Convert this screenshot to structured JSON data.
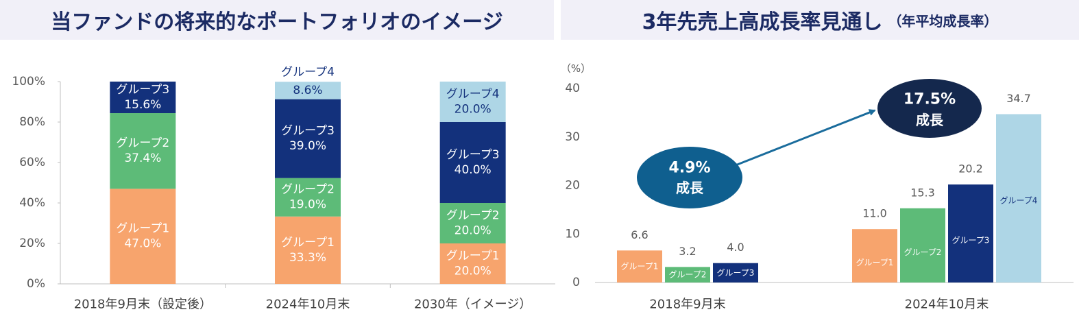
{
  "header": {
    "left_title": "当ファンドの将来的なポートフォリオのイメージ",
    "right_title": "3年先売上高成長率見通し",
    "right_subtitle": "（年平均成長率）"
  },
  "colors": {
    "グループ1": "#f7a46d",
    "グループ2": "#5dbb78",
    "グループ3": "#13317c",
    "グループ4": "#aed6e6",
    "bubble": "#0f5f8f",
    "bubble_dark": "#14284d",
    "arrow": "#1a6c9c"
  },
  "chart_data": [
    {
      "type": "bar",
      "stacked": true,
      "categories": [
        "2018年9月末（設定後）",
        "2024年10月末",
        "2030年（イメージ）"
      ],
      "series": [
        {
          "name": "グループ1",
          "values": [
            47.0,
            33.3,
            20.0
          ]
        },
        {
          "name": "グループ2",
          "values": [
            37.4,
            19.0,
            20.0
          ]
        },
        {
          "name": "グループ3",
          "values": [
            15.6,
            39.0,
            40.0
          ]
        },
        {
          "name": "グループ4",
          "values": [
            0,
            8.6,
            20.0
          ]
        }
      ],
      "value_labels": [
        [
          "47.0%",
          "37.4%",
          "15.6%",
          null
        ],
        [
          "33.3%",
          "19.0%",
          "39.0%",
          "8.6%"
        ],
        [
          "20.0%",
          "20.0%",
          "40.0%",
          "20.0%"
        ]
      ],
      "ylim": [
        0,
        100
      ],
      "yticks": [
        "0%",
        "20%",
        "40%",
        "60%",
        "80%",
        "100%"
      ],
      "grid": false
    },
    {
      "type": "bar",
      "categories": [
        "2018年9月末",
        "2024年10月末"
      ],
      "series": [
        {
          "name": "グループ1",
          "values": [
            6.6,
            11.0
          ]
        },
        {
          "name": "グループ2",
          "values": [
            3.2,
            15.3
          ]
        },
        {
          "name": "グループ3",
          "values": [
            4.0,
            20.2
          ]
        },
        {
          "name": "グループ4",
          "values": [
            null,
            34.7
          ]
        }
      ],
      "value_labels": [
        [
          "6.6",
          "3.2",
          "4.0",
          null
        ],
        [
          "11.0",
          "15.3",
          "20.2",
          "34.7"
        ]
      ],
      "unit_label": "（%）",
      "ylim": [
        0,
        40
      ],
      "yticks": [
        "0",
        "10",
        "20",
        "30",
        "40"
      ],
      "grid": false,
      "annotations": [
        {
          "value": "4.9%",
          "label": "成長"
        },
        {
          "value": "17.5%",
          "label": "成長"
        }
      ]
    }
  ]
}
